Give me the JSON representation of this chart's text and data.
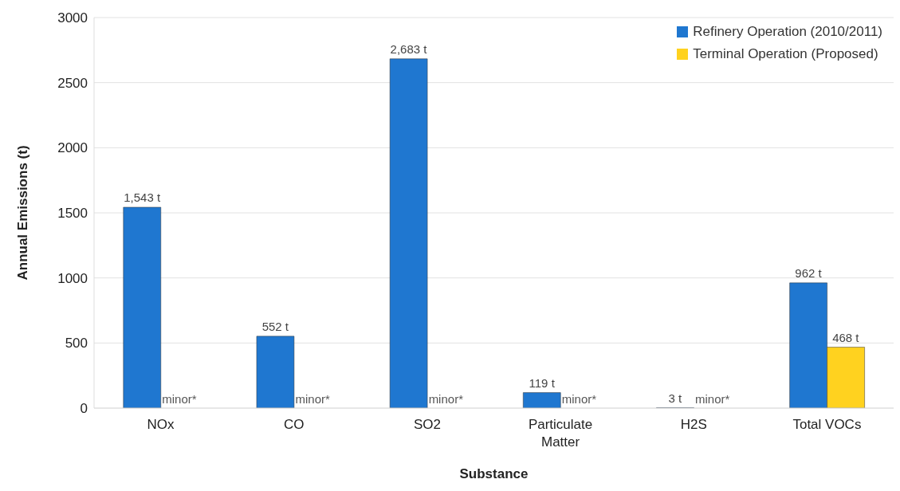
{
  "chart_data": {
    "type": "bar",
    "xlabel": "Substance",
    "ylabel": "Annual Emissions (t)",
    "categories": [
      "NOx",
      "CO",
      "SO2",
      "Particulate Matter",
      "H2S",
      "Total VOCs"
    ],
    "series": [
      {
        "name": "Refinery Operation (2010/2011)",
        "color": "#1f77d0",
        "values": [
          1543,
          552,
          2683,
          119,
          3,
          962
        ],
        "value_labels": [
          "1,543 t",
          "552 t",
          "2,683 t",
          "119 t",
          "3 t",
          "962 t"
        ]
      },
      {
        "name": "Terminal Operation (Proposed)",
        "color": "#ffd21f",
        "values": [
          null,
          null,
          null,
          null,
          null,
          468
        ],
        "value_labels": [
          "minor*",
          "minor*",
          "minor*",
          "minor*",
          "minor*",
          "468 t"
        ]
      }
    ],
    "ylim": [
      0,
      3000
    ],
    "yticks": [
      0,
      500,
      1000,
      1500,
      2000,
      2500,
      3000
    ],
    "grid": "y",
    "legend": "top right"
  }
}
